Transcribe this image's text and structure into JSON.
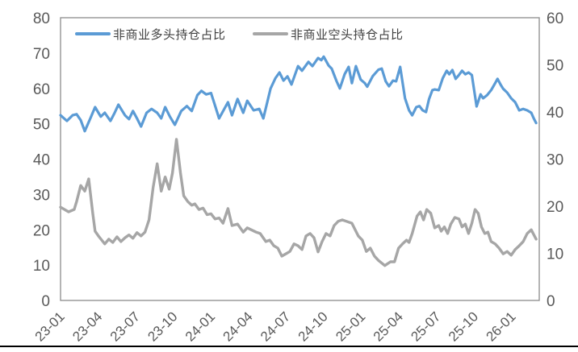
{
  "chart_data": {
    "type": "line",
    "title": "",
    "grid": false,
    "legend_position": "top",
    "legend": [
      {
        "name": "非商业多头持仓占比",
        "color": "#5B9BD5"
      },
      {
        "name": "非商业空头持仓占比",
        "color": "#A6A6A6"
      }
    ],
    "x_axis": {
      "unit": "year-month (YY-MM), monthly scale since 2023-01",
      "domain": [
        0,
        38.2
      ],
      "tick_positions": [
        0,
        3,
        6,
        9,
        12,
        15,
        18,
        21,
        24,
        27,
        30,
        33,
        36
      ],
      "tick_labels": [
        "23-01",
        "23-04",
        "23-07",
        "23-10",
        "24-01",
        "24-04",
        "24-07",
        "24-10",
        "25-01",
        "25-04",
        "25-07",
        "25-10",
        "26-01"
      ],
      "label_rotation_deg": -45
    },
    "left_axis": {
      "min": 0,
      "max": 80,
      "ticks": [
        0,
        10,
        20,
        30,
        40,
        50,
        60,
        70,
        80
      ]
    },
    "right_axis": {
      "min": 0,
      "max": 60,
      "ticks": [
        0,
        10,
        20,
        30,
        40,
        50,
        60
      ]
    },
    "series": [
      {
        "name": "非商业多头持仓占比",
        "axis": "left",
        "color": "#5B9BD5",
        "line_width": 3.2,
        "points": [
          [
            0.0,
            52.4
          ],
          [
            0.35,
            51.3
          ],
          [
            0.51,
            50.8
          ],
          [
            0.96,
            52.4
          ],
          [
            1.28,
            52.7
          ],
          [
            1.61,
            51.0
          ],
          [
            1.93,
            47.9
          ],
          [
            2.38,
            51.5
          ],
          [
            2.76,
            54.7
          ],
          [
            3.21,
            52.0
          ],
          [
            3.53,
            53.1
          ],
          [
            3.98,
            50.8
          ],
          [
            4.3,
            53.0
          ],
          [
            4.62,
            55.4
          ],
          [
            5.14,
            52.4
          ],
          [
            5.46,
            51.3
          ],
          [
            5.78,
            53.6
          ],
          [
            6.1,
            51.5
          ],
          [
            6.42,
            49.2
          ],
          [
            6.87,
            53.1
          ],
          [
            7.26,
            54.2
          ],
          [
            7.71,
            53.1
          ],
          [
            8.03,
            51.5
          ],
          [
            8.35,
            54.7
          ],
          [
            8.73,
            52.0
          ],
          [
            9.12,
            49.7
          ],
          [
            9.63,
            53.6
          ],
          [
            10.08,
            55.0
          ],
          [
            10.47,
            53.6
          ],
          [
            10.92,
            58.1
          ],
          [
            11.24,
            59.3
          ],
          [
            11.62,
            58.3
          ],
          [
            12.01,
            58.7
          ],
          [
            12.27,
            55.8
          ],
          [
            12.65,
            51.5
          ],
          [
            13.36,
            56.1
          ],
          [
            13.68,
            52.4
          ],
          [
            14.13,
            57.0
          ],
          [
            14.58,
            53.1
          ],
          [
            14.9,
            56.5
          ],
          [
            15.41,
            53.8
          ],
          [
            15.86,
            54.2
          ],
          [
            16.18,
            51.5
          ],
          [
            16.76,
            60.0
          ],
          [
            17.15,
            62.9
          ],
          [
            17.47,
            64.5
          ],
          [
            17.79,
            62.2
          ],
          [
            18.11,
            63.4
          ],
          [
            18.43,
            61.1
          ],
          [
            18.95,
            66.3
          ],
          [
            19.27,
            65.0
          ],
          [
            19.78,
            67.5
          ],
          [
            20.1,
            66.3
          ],
          [
            20.55,
            68.6
          ],
          [
            20.81,
            68.0
          ],
          [
            21.0,
            69.0
          ],
          [
            21.39,
            66.5
          ],
          [
            21.64,
            65.6
          ],
          [
            22.03,
            62.0
          ],
          [
            22.29,
            60.0
          ],
          [
            22.67,
            64.0
          ],
          [
            22.99,
            66.1
          ],
          [
            23.25,
            61.5
          ],
          [
            23.57,
            66.3
          ],
          [
            23.95,
            62.5
          ],
          [
            24.28,
            61.5
          ],
          [
            24.47,
            60.5
          ],
          [
            24.92,
            63.5
          ],
          [
            25.37,
            65.3
          ],
          [
            25.63,
            65.6
          ],
          [
            25.95,
            62.0
          ],
          [
            26.21,
            60.6
          ],
          [
            26.53,
            62.2
          ],
          [
            26.78,
            62.0
          ],
          [
            27.1,
            66.1
          ],
          [
            27.49,
            57.2
          ],
          [
            27.81,
            53.8
          ],
          [
            28.06,
            52.4
          ],
          [
            28.39,
            54.7
          ],
          [
            28.64,
            55.0
          ],
          [
            28.9,
            53.8
          ],
          [
            29.16,
            53.3
          ],
          [
            29.41,
            57.0
          ],
          [
            29.67,
            59.5
          ],
          [
            29.86,
            59.7
          ],
          [
            30.18,
            59.5
          ],
          [
            30.5,
            62.9
          ],
          [
            30.82,
            65.0
          ],
          [
            31.02,
            64.0
          ],
          [
            31.27,
            65.2
          ],
          [
            31.53,
            62.7
          ],
          [
            31.79,
            63.8
          ],
          [
            32.04,
            65.0
          ],
          [
            32.3,
            64.0
          ],
          [
            32.56,
            64.5
          ],
          [
            32.82,
            63.8
          ],
          [
            33.2,
            54.9
          ],
          [
            33.52,
            58.3
          ],
          [
            33.72,
            57.2
          ],
          [
            34.04,
            58.1
          ],
          [
            34.36,
            59.5
          ],
          [
            34.68,
            61.5
          ],
          [
            34.87,
            62.7
          ],
          [
            35.13,
            61.0
          ],
          [
            35.32,
            59.9
          ],
          [
            35.64,
            58.8
          ],
          [
            35.96,
            57.2
          ],
          [
            36.28,
            56.1
          ],
          [
            36.6,
            53.8
          ],
          [
            36.92,
            54.2
          ],
          [
            37.24,
            53.8
          ],
          [
            37.56,
            53.1
          ],
          [
            37.76,
            51.5
          ],
          [
            37.95,
            50.2
          ]
        ]
      },
      {
        "name": "非商业空头持仓占比",
        "axis": "right",
        "color": "#A6A6A6",
        "line_width": 3.4,
        "points": [
          [
            0.0,
            19.8
          ],
          [
            0.64,
            18.8
          ],
          [
            1.09,
            19.3
          ],
          [
            1.28,
            21.0
          ],
          [
            1.61,
            24.4
          ],
          [
            1.93,
            23.2
          ],
          [
            2.25,
            25.8
          ],
          [
            2.57,
            18.5
          ],
          [
            2.76,
            14.7
          ],
          [
            3.02,
            13.7
          ],
          [
            3.53,
            12.0
          ],
          [
            3.85,
            13.0
          ],
          [
            4.17,
            12.3
          ],
          [
            4.5,
            13.5
          ],
          [
            4.82,
            12.5
          ],
          [
            5.14,
            13.3
          ],
          [
            5.46,
            13.9
          ],
          [
            5.78,
            13.2
          ],
          [
            6.1,
            14.4
          ],
          [
            6.42,
            13.7
          ],
          [
            6.74,
            14.5
          ],
          [
            7.06,
            17.1
          ],
          [
            7.39,
            24.0
          ],
          [
            7.71,
            29.0
          ],
          [
            8.03,
            23.2
          ],
          [
            8.35,
            26.2
          ],
          [
            8.67,
            23.6
          ],
          [
            8.93,
            27.0
          ],
          [
            9.25,
            34.2
          ],
          [
            9.57,
            27.0
          ],
          [
            9.83,
            22.2
          ],
          [
            10.15,
            21.0
          ],
          [
            10.47,
            20.2
          ],
          [
            10.72,
            20.5
          ],
          [
            11.05,
            19.3
          ],
          [
            11.37,
            19.6
          ],
          [
            11.69,
            18.2
          ],
          [
            12.01,
            18.4
          ],
          [
            12.33,
            17.3
          ],
          [
            12.65,
            17.5
          ],
          [
            12.97,
            16.4
          ],
          [
            13.36,
            19.5
          ],
          [
            13.68,
            15.9
          ],
          [
            14.13,
            16.2
          ],
          [
            14.58,
            14.5
          ],
          [
            14.9,
            15.4
          ],
          [
            15.22,
            15.0
          ],
          [
            15.61,
            14.5
          ],
          [
            15.93,
            14.2
          ],
          [
            16.38,
            12.5
          ],
          [
            16.7,
            12.8
          ],
          [
            17.02,
            11.6
          ],
          [
            17.34,
            11.1
          ],
          [
            17.66,
            9.4
          ],
          [
            17.98,
            9.9
          ],
          [
            18.3,
            10.4
          ],
          [
            18.63,
            12.0
          ],
          [
            18.95,
            11.6
          ],
          [
            19.27,
            10.8
          ],
          [
            19.59,
            13.7
          ],
          [
            19.91,
            14.2
          ],
          [
            20.23,
            13.3
          ],
          [
            20.55,
            10.3
          ],
          [
            20.87,
            12.5
          ],
          [
            21.19,
            14.2
          ],
          [
            21.51,
            13.7
          ],
          [
            21.83,
            15.9
          ],
          [
            22.16,
            16.8
          ],
          [
            22.48,
            17.1
          ],
          [
            22.8,
            16.8
          ],
          [
            23.25,
            16.4
          ],
          [
            23.76,
            13.7
          ],
          [
            24.08,
            12.8
          ],
          [
            24.4,
            10.4
          ],
          [
            24.72,
            11.1
          ],
          [
            25.05,
            9.4
          ],
          [
            25.37,
            8.5
          ],
          [
            25.88,
            7.4
          ],
          [
            26.33,
            8.2
          ],
          [
            26.65,
            8.2
          ],
          [
            26.97,
            11.1
          ],
          [
            27.29,
            12.0
          ],
          [
            27.61,
            12.8
          ],
          [
            27.81,
            12.3
          ],
          [
            28.06,
            14.2
          ],
          [
            28.45,
            17.9
          ],
          [
            28.71,
            18.8
          ],
          [
            28.97,
            17.1
          ],
          [
            29.22,
            19.3
          ],
          [
            29.54,
            18.5
          ],
          [
            29.86,
            15.4
          ],
          [
            30.18,
            15.9
          ],
          [
            30.37,
            14.7
          ],
          [
            30.63,
            15.6
          ],
          [
            30.89,
            14.2
          ],
          [
            31.14,
            16.2
          ],
          [
            31.46,
            17.6
          ],
          [
            31.79,
            17.3
          ],
          [
            32.04,
            15.6
          ],
          [
            32.3,
            16.2
          ],
          [
            32.56,
            14.2
          ],
          [
            32.82,
            16.4
          ],
          [
            33.08,
            19.3
          ],
          [
            33.33,
            18.5
          ],
          [
            33.59,
            15.6
          ],
          [
            33.85,
            14.2
          ],
          [
            34.1,
            14.5
          ],
          [
            34.36,
            12.5
          ],
          [
            34.68,
            12.0
          ],
          [
            35.0,
            11.1
          ],
          [
            35.32,
            9.9
          ],
          [
            35.64,
            10.4
          ],
          [
            35.96,
            9.6
          ],
          [
            36.28,
            10.8
          ],
          [
            36.6,
            11.6
          ],
          [
            36.92,
            12.5
          ],
          [
            37.24,
            14.2
          ],
          [
            37.56,
            15.0
          ],
          [
            37.95,
            13.0
          ]
        ]
      }
    ]
  },
  "styles": {
    "background": "#FFFFFF",
    "plot_border_color": "#8C8C8C",
    "tick_label_color": "#595959",
    "legend_text_color": "#404040",
    "bottom_rule_color": "#000000",
    "series_long_color": "#5B9BD5",
    "series_short_color": "#A6A6A6"
  }
}
